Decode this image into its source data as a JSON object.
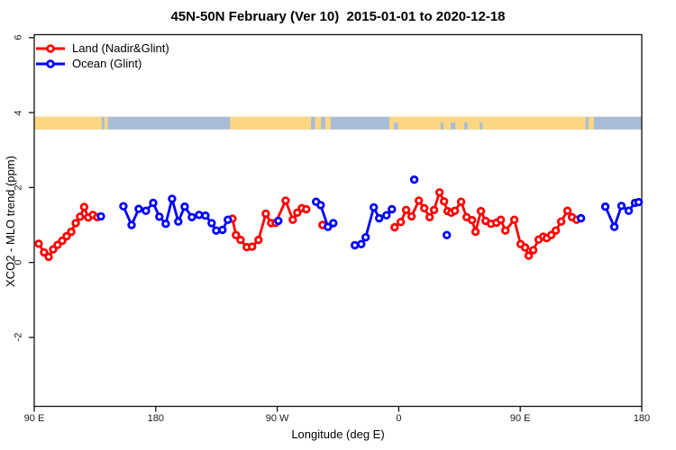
{
  "chart_data": {
    "type": "line",
    "title": "45N-50N February (Ver 10)  2015-01-01 to 2020-12-18",
    "xlabel": "Longitude (deg E)",
    "ylabel": "XCO2 - MLO trend (ppm)",
    "x_unit": "degrees eastward from 90E (axis wraps 90E>180>90W>0>90E>180)",
    "x_range": [
      0,
      450
    ],
    "y_range": [
      -3.84,
      6.08
    ],
    "grid": false,
    "x_ticks": [
      {
        "deg": 0,
        "label": "90 E"
      },
      {
        "deg": 90,
        "label": "180"
      },
      {
        "deg": 180,
        "label": "90 W"
      },
      {
        "deg": 270,
        "label": "0"
      },
      {
        "deg": 360,
        "label": "90 E"
      },
      {
        "deg": 450,
        "label": "180"
      }
    ],
    "y_ticks": [
      {
        "value": 6,
        "label": "6"
      },
      {
        "value": 4,
        "label": "4"
      },
      {
        "value": 2,
        "label": "2"
      },
      {
        "value": 0,
        "label": "0"
      },
      {
        "value": -2,
        "label": "-2"
      }
    ],
    "legend": [
      {
        "label": "Land (Nadir&Glint)",
        "color": "#ff0000"
      },
      {
        "label": "Ocean (Glint)",
        "color": "#0000ff"
      }
    ],
    "map_band": {
      "y_top": 3.89,
      "y_bottom": 3.55,
      "ocean_color": "#a8bcd8",
      "land_color": "#fbd784",
      "land_segments_deg": [
        [
          0,
          50
        ],
        [
          52,
          54.5
        ],
        [
          145,
          205
        ],
        [
          208,
          212.5
        ],
        [
          215.5,
          219.5
        ],
        [
          263,
          408.5
        ],
        [
          410.5,
          414.5
        ]
      ],
      "ocean_flecks_deg": [
        [
          266.5,
          269.5
        ],
        [
          301,
          303
        ],
        [
          308.5,
          312
        ],
        [
          318.5,
          321
        ],
        [
          330,
          332
        ]
      ]
    },
    "series": [
      {
        "name": "Land (Nadir&Glint)",
        "color": "#ff0000",
        "marker": "open-circle",
        "segments": [
          [
            [
              3.3,
              0.5
            ],
            [
              7.3,
              0.27
            ],
            [
              10.7,
              0.15
            ],
            [
              14.0,
              0.35
            ],
            [
              17.3,
              0.47
            ],
            [
              20.7,
              0.58
            ],
            [
              24.0,
              0.7
            ],
            [
              27.4,
              0.82
            ],
            [
              30.7,
              1.05
            ],
            [
              34.0,
              1.22
            ],
            [
              37.0,
              1.48
            ],
            [
              40.0,
              1.2
            ],
            [
              43.4,
              1.27
            ],
            [
              46.7,
              1.21
            ]
          ],
          [
            [
              146.8,
              1.17
            ],
            [
              149.4,
              0.73
            ],
            [
              152.8,
              0.6
            ],
            [
              157.4,
              0.41
            ],
            [
              161.4,
              0.42
            ],
            [
              166.1,
              0.6
            ],
            [
              171.5,
              1.3
            ],
            [
              175.5,
              1.05
            ],
            [
              178.8,
              1.06
            ],
            [
              186.2,
              1.65
            ],
            [
              191.5,
              1.14
            ],
            [
              194.8,
              1.33
            ],
            [
              198.2,
              1.45
            ],
            [
              201.5,
              1.42
            ]
          ],
          [
            [
              213.5,
              1.0
            ]
          ],
          [
            [
              266.9,
              0.94
            ],
            [
              271.5,
              1.08
            ],
            [
              275.5,
              1.4
            ],
            [
              279.5,
              1.23
            ],
            [
              284.9,
              1.65
            ],
            [
              288.9,
              1.45
            ],
            [
              292.9,
              1.21
            ],
            [
              296.2,
              1.4
            ],
            [
              300.2,
              1.87
            ],
            [
              303.6,
              1.63
            ],
            [
              306.2,
              1.37
            ],
            [
              308.9,
              1.33
            ],
            [
              311.6,
              1.38
            ],
            [
              316.2,
              1.62
            ],
            [
              320.3,
              1.21
            ],
            [
              324.3,
              1.13
            ],
            [
              326.9,
              0.82
            ],
            [
              330.9,
              1.37
            ],
            [
              334.3,
              1.11
            ],
            [
              338.3,
              1.03
            ],
            [
              342.3,
              1.06
            ],
            [
              345.6,
              1.14
            ],
            [
              349.0,
              0.85
            ],
            [
              355.6,
              1.14
            ],
            [
              360.3,
              0.49
            ],
            [
              363.6,
              0.4
            ],
            [
              366.3,
              0.18
            ],
            [
              369.6,
              0.33
            ],
            [
              373.6,
              0.61
            ],
            [
              377.0,
              0.69
            ],
            [
              379.6,
              0.65
            ],
            [
              383.0,
              0.73
            ],
            [
              386.3,
              0.85
            ],
            [
              390.3,
              1.09
            ],
            [
              395.0,
              1.38
            ],
            [
              398.3,
              1.21
            ],
            [
              401.7,
              1.14
            ]
          ]
        ]
      },
      {
        "name": "Ocean (Glint)",
        "color": "#0000ff",
        "marker": "open-circle",
        "segments": [
          [
            [
              49.4,
              1.23
            ]
          ],
          [
            [
              66.0,
              1.5
            ],
            [
              72.1,
              1.0
            ],
            [
              77.4,
              1.43
            ],
            [
              82.7,
              1.38
            ],
            [
              88.1,
              1.59
            ],
            [
              92.7,
              1.22
            ],
            [
              97.4,
              1.03
            ],
            [
              102.1,
              1.7
            ],
            [
              106.7,
              1.09
            ],
            [
              111.4,
              1.49
            ],
            [
              116.8,
              1.21
            ],
            [
              122.1,
              1.27
            ],
            [
              126.8,
              1.25
            ],
            [
              131.4,
              1.05
            ],
            [
              134.8,
              0.85
            ],
            [
              139.4,
              0.87
            ],
            [
              143.4,
              1.14
            ]
          ],
          [
            [
              180.8,
              1.11
            ]
          ],
          [
            [
              208.8,
              1.62
            ],
            [
              212.2,
              1.53
            ],
            [
              217.5,
              0.95
            ],
            [
              221.5,
              1.05
            ]
          ],
          [
            [
              237.5,
              0.46
            ],
            [
              242.2,
              0.49
            ],
            [
              245.5,
              0.67
            ],
            [
              251.5,
              1.47
            ],
            [
              255.5,
              1.18
            ],
            [
              260.9,
              1.26
            ],
            [
              264.9,
              1.42
            ]
          ],
          [
            [
              281.5,
              2.21
            ]
          ],
          [
            [
              305.6,
              0.73
            ]
          ],
          [
            [
              405.0,
              1.18
            ]
          ],
          [
            [
              423.0,
              1.49
            ],
            [
              429.7,
              0.95
            ],
            [
              435.0,
              1.51
            ],
            [
              440.3,
              1.38
            ],
            [
              445.0,
              1.59
            ],
            [
              447.7,
              1.61
            ]
          ]
        ]
      }
    ]
  }
}
